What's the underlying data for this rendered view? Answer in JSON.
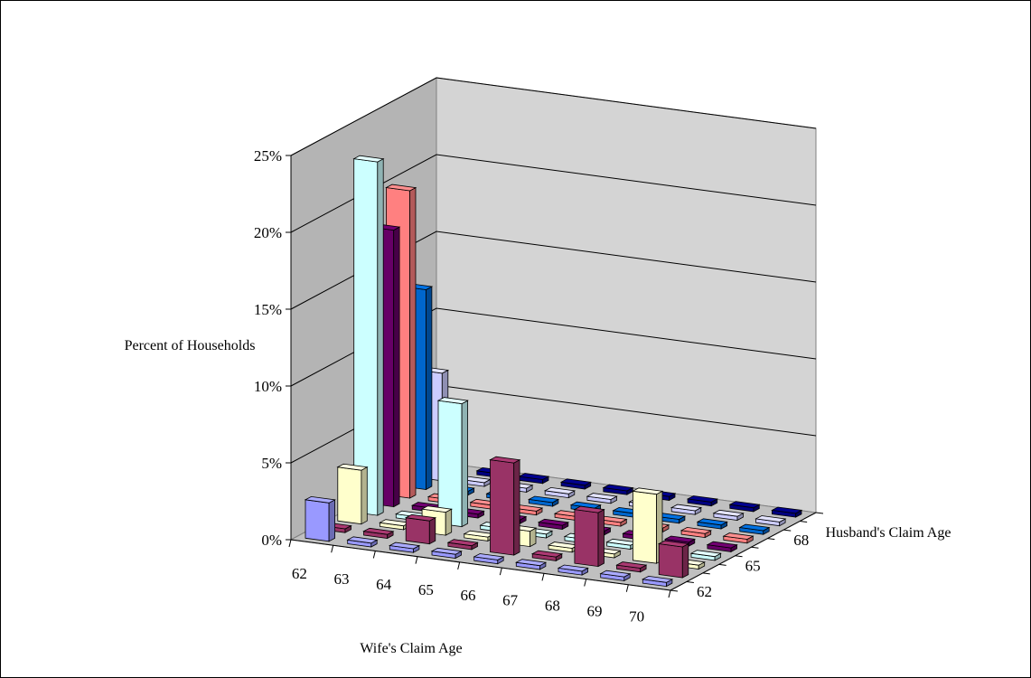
{
  "chart_data": {
    "type": "bar",
    "subtype": "3d-column",
    "ylabel": "Percent of Households",
    "xlabel": "Wife's Claim Age",
    "zlabel": "Husband's Claim Age",
    "y_ticks": [
      "0%",
      "5%",
      "10%",
      "15%",
      "20%",
      "25%"
    ],
    "ylim": [
      0,
      25
    ],
    "x_ticks": [
      "62",
      "63",
      "64",
      "65",
      "66",
      "67",
      "68",
      "69",
      "70"
    ],
    "z_ticks": [
      "62",
      "65",
      "68"
    ],
    "grid": true,
    "wife_ages": [
      62,
      63,
      64,
      65,
      66,
      67,
      68,
      69,
      70
    ],
    "husband_ages": [
      62,
      63,
      64,
      65,
      66,
      67,
      68,
      69,
      70
    ],
    "series_colors": [
      "#9999ff",
      "#993366",
      "#ffffcc",
      "#ccffff",
      "#660066",
      "#ff8080",
      "#0066cc",
      "#ccccff",
      "#000080"
    ],
    "values": [
      [
        2.5,
        0,
        3.5,
        23,
        18,
        20,
        13,
        7,
        3
      ],
      [
        0,
        0,
        0,
        0,
        0,
        0,
        0,
        0,
        0
      ],
      [
        0,
        1.5,
        1.5,
        8,
        0,
        0,
        0,
        0,
        0
      ],
      [
        0,
        0,
        0,
        0,
        0,
        0,
        0,
        0,
        0
      ],
      [
        0,
        6,
        1,
        0,
        0,
        0,
        0,
        0,
        0
      ],
      [
        0,
        0,
        0,
        0,
        0,
        0,
        0,
        0,
        0
      ],
      [
        0,
        3.5,
        0,
        0,
        0,
        0,
        0,
        0,
        0
      ],
      [
        0,
        0,
        4.5,
        0,
        0,
        0,
        0,
        0,
        0
      ],
      [
        0,
        2,
        0,
        0,
        0,
        0,
        0,
        0,
        0
      ]
    ]
  }
}
